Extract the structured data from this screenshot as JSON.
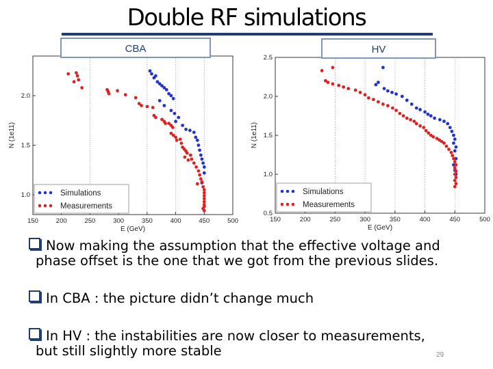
{
  "slide": {
    "title": "Double RF simulations",
    "panel_labels": [
      "CBA",
      "HV"
    ],
    "bullets": [
      {
        "line1": "Now making the assumption that the effective voltage and",
        "line2": "phase offset is the one that we got from the previous slides."
      },
      {
        "line1": "In CBA : the picture didn’t change much",
        "line2": ""
      },
      {
        "line1": "In HV : the instabilities are now closer to measurements,",
        "line2": "but still slightly more stable"
      }
    ],
    "page_number": "29"
  },
  "chart_data": [
    {
      "type": "scatter",
      "panel": "CBA",
      "xlabel": "E (GeV)",
      "ylabel": "N (1e11)",
      "xlim": [
        150,
        500
      ],
      "ylim": [
        0.8,
        2.4
      ],
      "xticks": [
        "150",
        "200",
        "250",
        "300",
        "350",
        "400",
        "450",
        "500"
      ],
      "xtick_values": [
        150,
        200,
        250,
        300,
        350,
        400,
        450,
        500
      ],
      "yticks": [
        "1.0",
        "1.5",
        "2.0"
      ],
      "ytick_values": [
        1.0,
        1.5,
        2.0
      ],
      "grid_x": [
        250,
        350,
        400,
        450
      ],
      "legend_position": "lower-left",
      "colors": {
        "Simulations": "#2233cc",
        "Measurements": "#dd2222"
      },
      "series": [
        {
          "name": "Simulations",
          "points": [
            [
              355,
              2.25
            ],
            [
              358,
              2.22
            ],
            [
              362,
              2.18
            ],
            [
              365,
              2.2
            ],
            [
              368,
              2.14
            ],
            [
              372,
              2.12
            ],
            [
              376,
              2.1
            ],
            [
              380,
              2.08
            ],
            [
              384,
              2.06
            ],
            [
              388,
              2.02
            ],
            [
              392,
              2.0
            ],
            [
              396,
              1.97
            ],
            [
              372,
              1.95
            ],
            [
              380,
              1.9
            ],
            [
              392,
              1.85
            ],
            [
              398,
              1.82
            ],
            [
              405,
              1.78
            ],
            [
              400,
              1.74
            ],
            [
              412,
              1.7
            ],
            [
              418,
              1.66
            ],
            [
              425,
              1.65
            ],
            [
              432,
              1.63
            ],
            [
              435,
              1.58
            ],
            [
              438,
              1.55
            ],
            [
              440,
              1.5
            ],
            [
              442,
              1.45
            ],
            [
              444,
              1.4
            ],
            [
              446,
              1.36
            ],
            [
              448,
              1.32
            ],
            [
              450,
              1.28
            ],
            [
              450,
              1.22
            ],
            [
              446,
              1.12
            ]
          ]
        },
        {
          "name": "Measurements",
          "points": [
            [
              212,
              2.22
            ],
            [
              226,
              2.23
            ],
            [
              228,
              2.2
            ],
            [
              230,
              2.16
            ],
            [
              222,
              2.14
            ],
            [
              236,
              2.08
            ],
            [
              280,
              2.06
            ],
            [
              282,
              2.04
            ],
            [
              283,
              2.02
            ],
            [
              298,
              2.05
            ],
            [
              312,
              2.01
            ],
            [
              330,
              1.98
            ],
            [
              336,
              1.92
            ],
            [
              340,
              1.9
            ],
            [
              350,
              1.89
            ],
            [
              360,
              1.88
            ],
            [
              362,
              1.8
            ],
            [
              365,
              1.78
            ],
            [
              376,
              1.76
            ],
            [
              380,
              1.74
            ],
            [
              382,
              1.72
            ],
            [
              388,
              1.72
            ],
            [
              392,
              1.7
            ],
            [
              395,
              1.68
            ],
            [
              392,
              1.62
            ],
            [
              396,
              1.6
            ],
            [
              400,
              1.58
            ],
            [
              402,
              1.55
            ],
            [
              408,
              1.56
            ],
            [
              410,
              1.52
            ],
            [
              412,
              1.48
            ],
            [
              415,
              1.46
            ],
            [
              418,
              1.44
            ],
            [
              420,
              1.42
            ],
            [
              416,
              1.38
            ],
            [
              422,
              1.35
            ],
            [
              426,
              1.4
            ],
            [
              428,
              1.36
            ],
            [
              432,
              1.32
            ],
            [
              436,
              1.28
            ],
            [
              440,
              1.24
            ],
            [
              442,
              1.2
            ],
            [
              444,
              1.16
            ],
            [
              446,
              1.13
            ],
            [
              438,
              1.11
            ],
            [
              448,
              1.08
            ],
            [
              450,
              1.05
            ],
            [
              450,
              1.02
            ],
            [
              450,
              0.99
            ],
            [
              450,
              0.96
            ],
            [
              450,
              0.93
            ],
            [
              450,
              0.9
            ],
            [
              450,
              0.88
            ],
            [
              448,
              0.86
            ],
            [
              450,
              0.84
            ]
          ]
        }
      ]
    },
    {
      "type": "scatter",
      "panel": "HV",
      "xlabel": "E (GeV)",
      "ylabel": "N (1e11)",
      "xlim": [
        150,
        500
      ],
      "ylim": [
        0.5,
        2.5
      ],
      "xticks": [
        "150",
        "200",
        "250",
        "300",
        "350",
        "400",
        "450",
        "500"
      ],
      "xtick_values": [
        150,
        200,
        250,
        300,
        350,
        400,
        450,
        500
      ],
      "yticks": [
        "0.5",
        "1.0",
        "1.5",
        "2.0",
        "2.5"
      ],
      "ytick_values": [
        0.5,
        1.0,
        1.5,
        2.0,
        2.5
      ],
      "grid_x": [
        250,
        300,
        350,
        400,
        450
      ],
      "legend_position": "lower-left",
      "colors": {
        "Simulations": "#2233cc",
        "Measurements": "#dd2222"
      },
      "series": [
        {
          "name": "Simulations",
          "points": [
            [
              330,
              2.37
            ],
            [
              318,
              2.15
            ],
            [
              322,
              2.18
            ],
            [
              332,
              2.1
            ],
            [
              338,
              2.07
            ],
            [
              345,
              2.05
            ],
            [
              352,
              2.03
            ],
            [
              362,
              2.0
            ],
            [
              370,
              1.95
            ],
            [
              378,
              1.9
            ],
            [
              386,
              1.85
            ],
            [
              392,
              1.83
            ],
            [
              400,
              1.8
            ],
            [
              405,
              1.77
            ],
            [
              410,
              1.75
            ],
            [
              416,
              1.72
            ],
            [
              425,
              1.7
            ],
            [
              432,
              1.68
            ],
            [
              438,
              1.65
            ],
            [
              442,
              1.6
            ],
            [
              445,
              1.55
            ],
            [
              448,
              1.5
            ],
            [
              450,
              1.45
            ],
            [
              448,
              1.4
            ],
            [
              452,
              1.35
            ],
            [
              450,
              1.3
            ],
            [
              452,
              1.2
            ],
            [
              448,
              1.12
            ],
            [
              450,
              1.05
            ],
            [
              452,
              1.0
            ]
          ]
        },
        {
          "name": "Measurements",
          "points": [
            [
              228,
              2.33
            ],
            [
              246,
              2.37
            ],
            [
              234,
              2.2
            ],
            [
              238,
              2.18
            ],
            [
              246,
              2.16
            ],
            [
              256,
              2.14
            ],
            [
              264,
              2.12
            ],
            [
              272,
              2.1
            ],
            [
              284,
              2.08
            ],
            [
              292,
              2.05
            ],
            [
              300,
              2.02
            ],
            [
              306,
              1.98
            ],
            [
              314,
              1.96
            ],
            [
              322,
              1.93
            ],
            [
              330,
              1.9
            ],
            [
              338,
              1.88
            ],
            [
              346,
              1.85
            ],
            [
              352,
              1.82
            ],
            [
              358,
              1.78
            ],
            [
              364,
              1.75
            ],
            [
              370,
              1.72
            ],
            [
              376,
              1.7
            ],
            [
              382,
              1.68
            ],
            [
              386,
              1.65
            ],
            [
              392,
              1.62
            ],
            [
              398,
              1.6
            ],
            [
              402,
              1.56
            ],
            [
              406,
              1.53
            ],
            [
              410,
              1.5
            ],
            [
              414,
              1.48
            ],
            [
              420,
              1.46
            ],
            [
              424,
              1.44
            ],
            [
              428,
              1.42
            ],
            [
              432,
              1.4
            ],
            [
              436,
              1.36
            ],
            [
              440,
              1.32
            ],
            [
              444,
              1.28
            ],
            [
              446,
              1.24
            ],
            [
              448,
              1.2
            ],
            [
              450,
              1.16
            ],
            [
              452,
              1.12
            ],
            [
              450,
              1.08
            ],
            [
              452,
              1.04
            ],
            [
              450,
              1.0
            ],
            [
              452,
              0.96
            ],
            [
              450,
              0.92
            ],
            [
              452,
              0.88
            ],
            [
              450,
              0.84
            ]
          ]
        }
      ]
    }
  ]
}
